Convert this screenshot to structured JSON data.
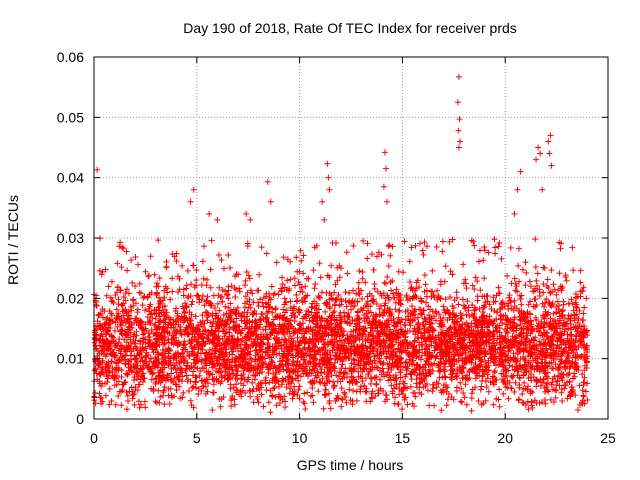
{
  "chart_data": {
    "type": "scatter",
    "title": "Day 190 of 2018, Rate Of TEC Index for receiver prds",
    "xlabel": "GPS time / hours",
    "ylabel": "ROTI / TECUs",
    "xlim": [
      0,
      25
    ],
    "ylim": [
      0,
      0.06
    ],
    "xticks": [
      0,
      5,
      10,
      15,
      20,
      25
    ],
    "yticks": [
      0,
      0.01,
      0.02,
      0.03,
      0.04,
      0.05,
      0.06
    ],
    "xtick_labels": [
      "0",
      "5",
      "10",
      "15",
      "20",
      "25"
    ],
    "ytick_labels": [
      "0",
      "0.01",
      "0.02",
      "0.03",
      "0.04",
      "0.05",
      "0.06"
    ],
    "grid": true,
    "marker": "+",
    "color": "#ff0000",
    "dense_band": {
      "x_range": [
        0,
        24
      ],
      "y_range": [
        0.003,
        0.03
      ],
      "typical": 0.012
    },
    "outliers": [
      [
        0.15,
        0.0413
      ],
      [
        4.85,
        0.038
      ],
      [
        4.7,
        0.036
      ],
      [
        5.6,
        0.034
      ],
      [
        6.0,
        0.033
      ],
      [
        7.4,
        0.034
      ],
      [
        7.6,
        0.033
      ],
      [
        8.45,
        0.0393
      ],
      [
        8.6,
        0.036
      ],
      [
        11.1,
        0.036
      ],
      [
        11.35,
        0.0423
      ],
      [
        11.4,
        0.04
      ],
      [
        11.45,
        0.038
      ],
      [
        11.2,
        0.033
      ],
      [
        14.15,
        0.0442
      ],
      [
        14.2,
        0.0415
      ],
      [
        14.1,
        0.0385
      ],
      [
        14.25,
        0.036
      ],
      [
        17.75,
        0.0567
      ],
      [
        17.7,
        0.0525
      ],
      [
        17.78,
        0.0497
      ],
      [
        17.72,
        0.0478
      ],
      [
        17.8,
        0.046
      ],
      [
        17.75,
        0.045
      ],
      [
        20.45,
        0.034
      ],
      [
        20.6,
        0.038
      ],
      [
        20.75,
        0.041
      ],
      [
        21.5,
        0.043
      ],
      [
        21.6,
        0.045
      ],
      [
        21.7,
        0.044
      ],
      [
        21.8,
        0.038
      ],
      [
        22.1,
        0.046
      ],
      [
        22.2,
        0.047
      ],
      [
        22.15,
        0.044
      ],
      [
        22.25,
        0.042
      ]
    ]
  }
}
